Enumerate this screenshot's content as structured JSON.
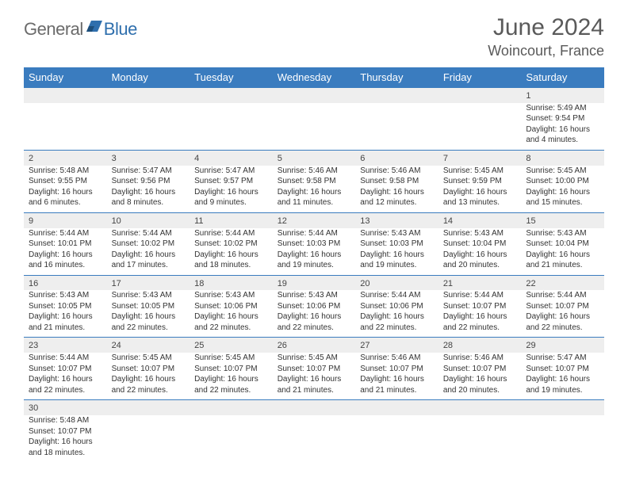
{
  "logo": {
    "gray": "General",
    "blue": "Blue"
  },
  "header": {
    "title": "June 2024",
    "location": "Woincourt, France"
  },
  "colors": {
    "header_bg": "#3a7cbf",
    "header_text": "#ffffff",
    "shade_bg": "#eeeeee",
    "row_border": "#3a7cbf",
    "logo_gray": "#6b6b6b",
    "logo_blue": "#2f6fad",
    "title_color": "#5a5a5a",
    "body_text": "#333333",
    "page_bg": "#ffffff"
  },
  "weekdays": [
    "Sunday",
    "Monday",
    "Tuesday",
    "Wednesday",
    "Thursday",
    "Friday",
    "Saturday"
  ],
  "weeks": [
    [
      null,
      null,
      null,
      null,
      null,
      null,
      {
        "day": "1",
        "sunrise": "Sunrise: 5:49 AM",
        "sunset": "Sunset: 9:54 PM",
        "daylight": "Daylight: 16 hours and 4 minutes."
      }
    ],
    [
      {
        "day": "2",
        "sunrise": "Sunrise: 5:48 AM",
        "sunset": "Sunset: 9:55 PM",
        "daylight": "Daylight: 16 hours and 6 minutes."
      },
      {
        "day": "3",
        "sunrise": "Sunrise: 5:47 AM",
        "sunset": "Sunset: 9:56 PM",
        "daylight": "Daylight: 16 hours and 8 minutes."
      },
      {
        "day": "4",
        "sunrise": "Sunrise: 5:47 AM",
        "sunset": "Sunset: 9:57 PM",
        "daylight": "Daylight: 16 hours and 9 minutes."
      },
      {
        "day": "5",
        "sunrise": "Sunrise: 5:46 AM",
        "sunset": "Sunset: 9:58 PM",
        "daylight": "Daylight: 16 hours and 11 minutes."
      },
      {
        "day": "6",
        "sunrise": "Sunrise: 5:46 AM",
        "sunset": "Sunset: 9:58 PM",
        "daylight": "Daylight: 16 hours and 12 minutes."
      },
      {
        "day": "7",
        "sunrise": "Sunrise: 5:45 AM",
        "sunset": "Sunset: 9:59 PM",
        "daylight": "Daylight: 16 hours and 13 minutes."
      },
      {
        "day": "8",
        "sunrise": "Sunrise: 5:45 AM",
        "sunset": "Sunset: 10:00 PM",
        "daylight": "Daylight: 16 hours and 15 minutes."
      }
    ],
    [
      {
        "day": "9",
        "sunrise": "Sunrise: 5:44 AM",
        "sunset": "Sunset: 10:01 PM",
        "daylight": "Daylight: 16 hours and 16 minutes."
      },
      {
        "day": "10",
        "sunrise": "Sunrise: 5:44 AM",
        "sunset": "Sunset: 10:02 PM",
        "daylight": "Daylight: 16 hours and 17 minutes."
      },
      {
        "day": "11",
        "sunrise": "Sunrise: 5:44 AM",
        "sunset": "Sunset: 10:02 PM",
        "daylight": "Daylight: 16 hours and 18 minutes."
      },
      {
        "day": "12",
        "sunrise": "Sunrise: 5:44 AM",
        "sunset": "Sunset: 10:03 PM",
        "daylight": "Daylight: 16 hours and 19 minutes."
      },
      {
        "day": "13",
        "sunrise": "Sunrise: 5:43 AM",
        "sunset": "Sunset: 10:03 PM",
        "daylight": "Daylight: 16 hours and 19 minutes."
      },
      {
        "day": "14",
        "sunrise": "Sunrise: 5:43 AM",
        "sunset": "Sunset: 10:04 PM",
        "daylight": "Daylight: 16 hours and 20 minutes."
      },
      {
        "day": "15",
        "sunrise": "Sunrise: 5:43 AM",
        "sunset": "Sunset: 10:04 PM",
        "daylight": "Daylight: 16 hours and 21 minutes."
      }
    ],
    [
      {
        "day": "16",
        "sunrise": "Sunrise: 5:43 AM",
        "sunset": "Sunset: 10:05 PM",
        "daylight": "Daylight: 16 hours and 21 minutes."
      },
      {
        "day": "17",
        "sunrise": "Sunrise: 5:43 AM",
        "sunset": "Sunset: 10:05 PM",
        "daylight": "Daylight: 16 hours and 22 minutes."
      },
      {
        "day": "18",
        "sunrise": "Sunrise: 5:43 AM",
        "sunset": "Sunset: 10:06 PM",
        "daylight": "Daylight: 16 hours and 22 minutes."
      },
      {
        "day": "19",
        "sunrise": "Sunrise: 5:43 AM",
        "sunset": "Sunset: 10:06 PM",
        "daylight": "Daylight: 16 hours and 22 minutes."
      },
      {
        "day": "20",
        "sunrise": "Sunrise: 5:44 AM",
        "sunset": "Sunset: 10:06 PM",
        "daylight": "Daylight: 16 hours and 22 minutes."
      },
      {
        "day": "21",
        "sunrise": "Sunrise: 5:44 AM",
        "sunset": "Sunset: 10:07 PM",
        "daylight": "Daylight: 16 hours and 22 minutes."
      },
      {
        "day": "22",
        "sunrise": "Sunrise: 5:44 AM",
        "sunset": "Sunset: 10:07 PM",
        "daylight": "Daylight: 16 hours and 22 minutes."
      }
    ],
    [
      {
        "day": "23",
        "sunrise": "Sunrise: 5:44 AM",
        "sunset": "Sunset: 10:07 PM",
        "daylight": "Daylight: 16 hours and 22 minutes."
      },
      {
        "day": "24",
        "sunrise": "Sunrise: 5:45 AM",
        "sunset": "Sunset: 10:07 PM",
        "daylight": "Daylight: 16 hours and 22 minutes."
      },
      {
        "day": "25",
        "sunrise": "Sunrise: 5:45 AM",
        "sunset": "Sunset: 10:07 PM",
        "daylight": "Daylight: 16 hours and 22 minutes."
      },
      {
        "day": "26",
        "sunrise": "Sunrise: 5:45 AM",
        "sunset": "Sunset: 10:07 PM",
        "daylight": "Daylight: 16 hours and 21 minutes."
      },
      {
        "day": "27",
        "sunrise": "Sunrise: 5:46 AM",
        "sunset": "Sunset: 10:07 PM",
        "daylight": "Daylight: 16 hours and 21 minutes."
      },
      {
        "day": "28",
        "sunrise": "Sunrise: 5:46 AM",
        "sunset": "Sunset: 10:07 PM",
        "daylight": "Daylight: 16 hours and 20 minutes."
      },
      {
        "day": "29",
        "sunrise": "Sunrise: 5:47 AM",
        "sunset": "Sunset: 10:07 PM",
        "daylight": "Daylight: 16 hours and 19 minutes."
      }
    ],
    [
      {
        "day": "30",
        "sunrise": "Sunrise: 5:48 AM",
        "sunset": "Sunset: 10:07 PM",
        "daylight": "Daylight: 16 hours and 18 minutes."
      },
      null,
      null,
      null,
      null,
      null,
      null
    ]
  ]
}
